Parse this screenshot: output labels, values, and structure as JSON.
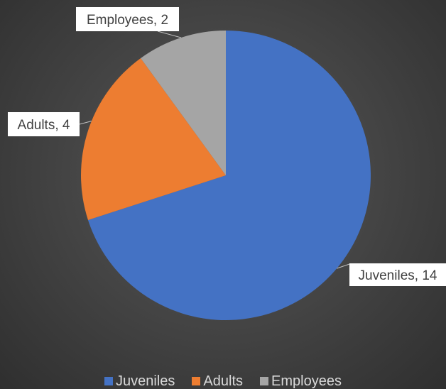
{
  "chart_data": {
    "type": "pie",
    "title": "",
    "categories": [
      "Juveniles",
      "Adults",
      "Employees"
    ],
    "values": [
      14,
      4,
      2
    ],
    "colors": [
      "#4472c4",
      "#ed7d31",
      "#a5a5a5"
    ],
    "data_labels": [
      "Juveniles, 14",
      "Adults, 4",
      "Employees, 2"
    ],
    "legend": {
      "placement": "bottom",
      "items": [
        {
          "label": "Juveniles",
          "color": "#4472c4"
        },
        {
          "label": "Adults",
          "color": "#ed7d31"
        },
        {
          "label": "Employees",
          "color": "#a5a5a5"
        }
      ]
    }
  }
}
